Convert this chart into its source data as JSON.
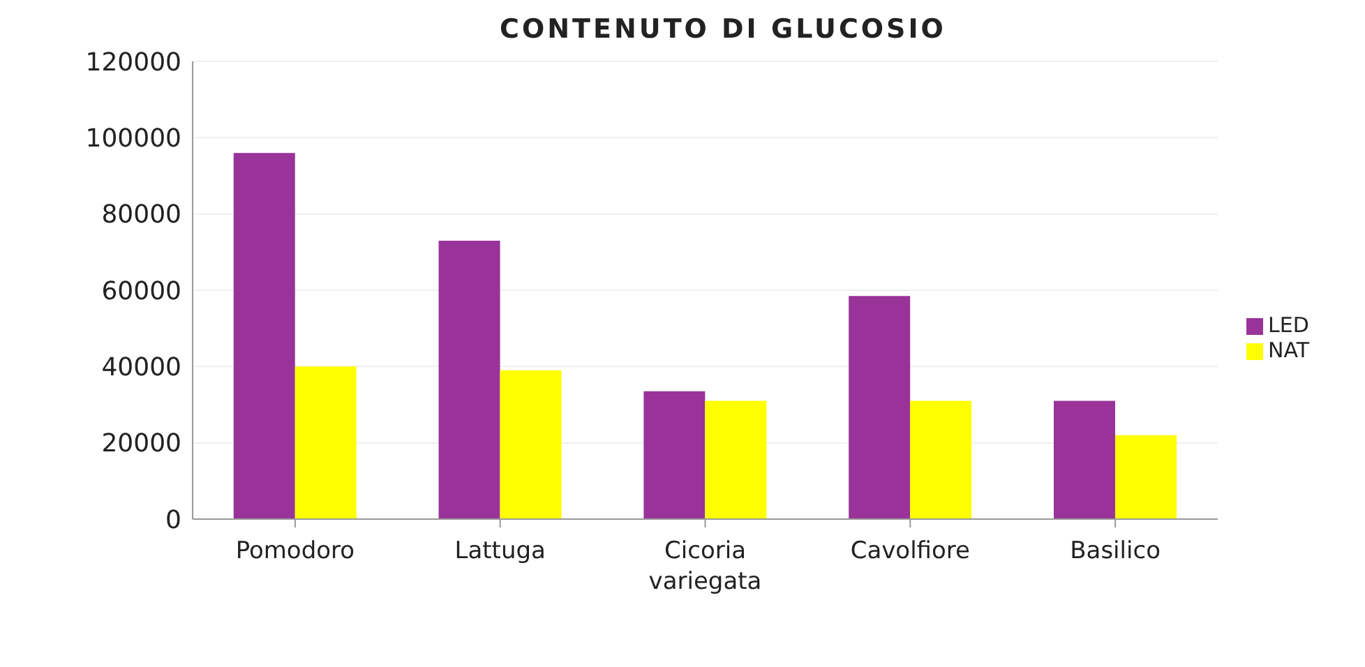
{
  "chart_data": {
    "type": "bar",
    "title": "CONTENUTO DI GLUCOSIO",
    "categories": [
      "Pomodoro",
      "Lattuga",
      "Cicoria variegata",
      "Cavolfiore",
      "Basilico"
    ],
    "series": [
      {
        "name": "LED",
        "color": "#993399",
        "values": [
          96000,
          73000,
          33500,
          58500,
          31000
        ]
      },
      {
        "name": "NAT",
        "color": "#ffff00",
        "values": [
          40000,
          39000,
          31000,
          31000,
          22000
        ]
      }
    ],
    "ylim": [
      0,
      120000
    ],
    "yticks": [
      0,
      20000,
      40000,
      60000,
      80000,
      100000,
      120000
    ],
    "grid": "y",
    "legend": "right"
  }
}
